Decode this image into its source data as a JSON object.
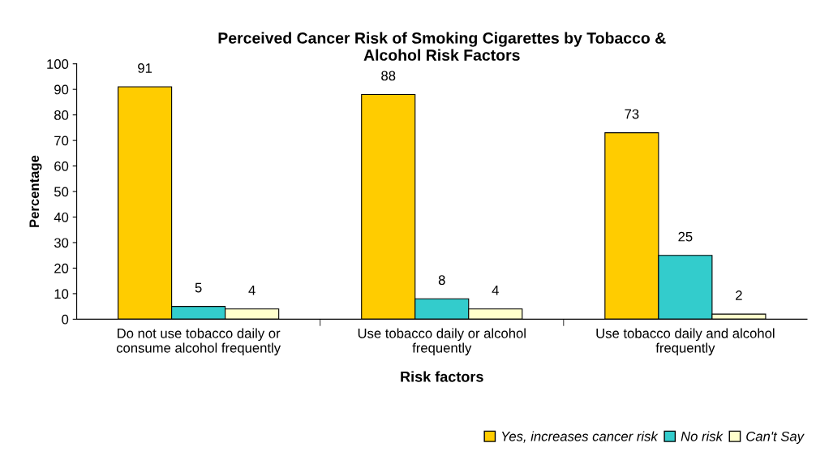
{
  "chart_data": {
    "type": "bar",
    "title": "Perceived Cancer Risk of Smoking Cigarettes by Tobacco &\nAlcohol Risk Factors",
    "xlabel": "Risk factors",
    "ylabel": "Percentage",
    "categories": [
      "Do not use tobacco daily or\nconsume alcohol frequently",
      "Use tobacco daily or alcohol\nfrequently",
      "Use tobacco daily and alcohol\nfrequently"
    ],
    "series": [
      {
        "name": "Yes, increases cancer risk",
        "color": "#ffcc00",
        "values": [
          91,
          88,
          73
        ]
      },
      {
        "name": "No risk",
        "color": "#33cccc",
        "values": [
          5,
          8,
          25
        ]
      },
      {
        "name": "Can't Say",
        "color": "#ffffcc",
        "values": [
          4,
          4,
          2
        ]
      }
    ],
    "ylim": [
      0,
      100
    ],
    "yticks": [
      0,
      10,
      20,
      30,
      40,
      50,
      60,
      70,
      80,
      90,
      100
    ],
    "grid": false,
    "legend": "bottom right",
    "data_labels": true
  }
}
